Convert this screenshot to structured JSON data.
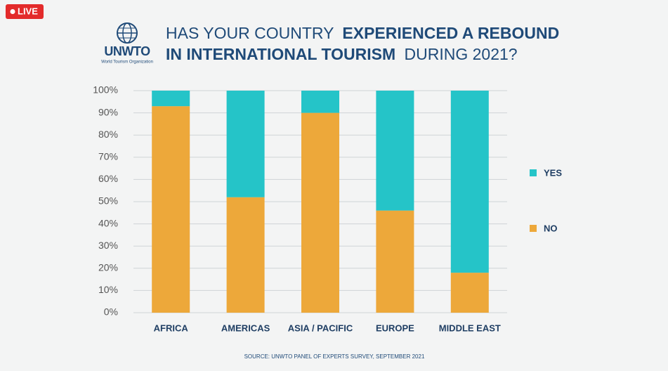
{
  "live_badge": "LIVE",
  "logo": {
    "name": "UNWTO",
    "subtitle": "World Tourism Organization"
  },
  "chart_data": {
    "type": "stacked-bar",
    "title_parts": [
      "HAS YOUR COUNTRY",
      "EXPERIENCED A REBOUND",
      "IN INTERNATIONAL TOURISM",
      "DURING 2021?"
    ],
    "categories": [
      "AFRICA",
      "AMERICAS",
      "ASIA / PACIFIC",
      "EUROPE",
      "MIDDLE EAST"
    ],
    "series": [
      {
        "name": "NO",
        "color": "#eda83a",
        "values": [
          93,
          52,
          90,
          46,
          18
        ]
      },
      {
        "name": "YES",
        "color": "#25c4c8",
        "values": [
          7,
          48,
          10,
          54,
          82
        ]
      }
    ],
    "ylim": [
      0,
      100
    ],
    "yticks": [
      {
        "value": 0,
        "label": "0%"
      },
      {
        "value": 10,
        "label": "10%"
      },
      {
        "value": 20,
        "label": "20%"
      },
      {
        "value": 30,
        "label": "30%"
      },
      {
        "value": 40,
        "label": "40%"
      },
      {
        "value": 50,
        "label": "50%"
      },
      {
        "value": 60,
        "label": "60%"
      },
      {
        "value": 70,
        "label": "70%"
      },
      {
        "value": 80,
        "label": "80%"
      },
      {
        "value": 90,
        "label": "90%"
      },
      {
        "value": 100,
        "label": "100%"
      }
    ],
    "grid": true,
    "legend": "right",
    "source": "SOURCE: UNWTO PANEL OF EXPERTS SURVEY, SEPTEMBER 2021"
  }
}
